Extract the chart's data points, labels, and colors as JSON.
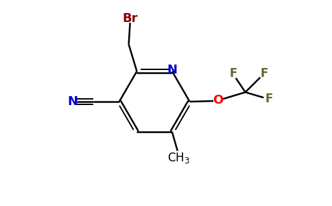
{
  "bg_color": "#ffffff",
  "atom_colors": {
    "Br": "#8b0000",
    "N_ring": "#0000cd",
    "O": "#ff0000",
    "F": "#556b2f",
    "N_cyano": "#0000cd",
    "C": "#000000"
  },
  "figsize": [
    4.84,
    3.0
  ],
  "dpi": 100
}
